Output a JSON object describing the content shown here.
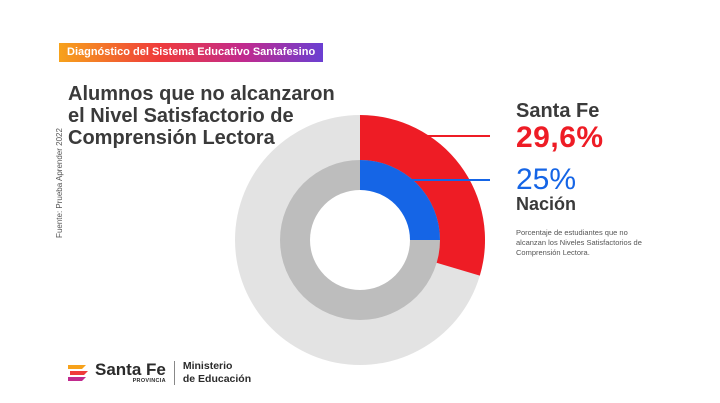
{
  "source": "Fuente: Prueba Aprender 2022",
  "badge": "Diagnóstico del Sistema Educativo Santafesino",
  "title": "Alumnos que no alcanzaron el Nivel Satisfactorio de Comprensión Lectora",
  "chart_data": {
    "type": "pie",
    "series": [
      {
        "name": "Santa Fe",
        "value": 29.6,
        "value_label": "29,6%",
        "color": "#ee1c25",
        "rest_color": "#e3e3e3",
        "ring": "outer"
      },
      {
        "name": "Nación",
        "value": 25,
        "value_label": "25%",
        "color": "#1565e6",
        "rest_color": "#bdbdbd",
        "ring": "inner"
      }
    ],
    "note": "Porcentaje de estudiantes que no alcanzan los Niveles Satisfactorios de Comprensión Lectora."
  },
  "footer": {
    "brand": "Santa Fe",
    "brand_sub": "PROVINCIA",
    "ministry_line1": "Ministerio",
    "ministry_line2": "de Educación"
  }
}
